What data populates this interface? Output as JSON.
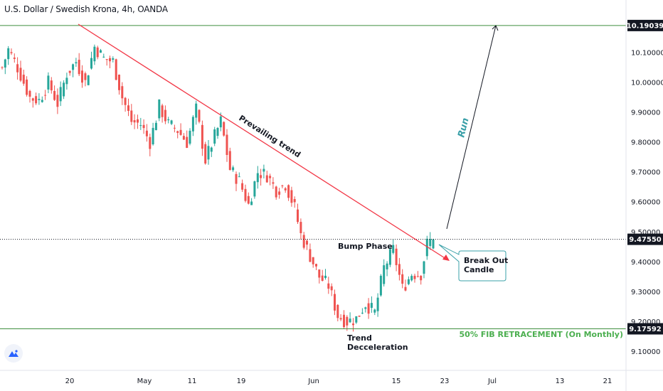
{
  "header": {
    "symbol_title": "U.S. Dollar / Swedish Krona, 4h, OANDA"
  },
  "colors": {
    "up": "#26a69a",
    "down": "#ef5350",
    "trendline": "#f23645",
    "fib_line": "#3f8f3f",
    "fib_text": "#4caf50",
    "run_text": "#3aa0a8",
    "run_arrow": "#131722",
    "price_tag": "#131722"
  },
  "chart_data": {
    "type": "candlestick",
    "x": [
      "20",
      "May",
      "11",
      "19",
      "Jun",
      "15",
      "23",
      "Jul",
      "13",
      "21"
    ],
    "y_ticks": [
      "10.10000",
      "10.00000",
      "9.90000",
      "9.80000",
      "9.70000",
      "9.60000",
      "9.50000",
      "9.40000",
      "9.30000",
      "9.20000",
      "9.10000"
    ],
    "ylim": [
      9.05,
      10.25
    ],
    "price_path": [
      [
        0,
        10.05
      ],
      [
        2,
        10.11
      ],
      [
        5,
        10.05
      ],
      [
        9,
        9.95
      ],
      [
        12,
        9.94
      ],
      [
        15,
        10.0
      ],
      [
        18,
        9.93
      ],
      [
        21,
        10.03
      ],
      [
        24,
        10.07
      ],
      [
        27,
        10.0
      ],
      [
        30,
        10.12
      ],
      [
        33,
        10.08
      ],
      [
        36,
        10.07
      ],
      [
        39,
        9.95
      ],
      [
        42,
        9.87
      ],
      [
        45,
        9.86
      ],
      [
        48,
        9.8
      ],
      [
        51,
        9.92
      ],
      [
        54,
        9.86
      ],
      [
        57,
        9.84
      ],
      [
        60,
        9.8
      ],
      [
        63,
        9.91
      ],
      [
        66,
        9.74
      ],
      [
        69,
        9.82
      ],
      [
        71,
        9.87
      ],
      [
        74,
        9.71
      ],
      [
        77,
        9.67
      ],
      [
        80,
        9.59
      ],
      [
        83,
        9.7
      ],
      [
        86,
        9.69
      ],
      [
        89,
        9.64
      ],
      [
        92,
        9.66
      ],
      [
        95,
        9.58
      ],
      [
        97,
        9.49
      ],
      [
        100,
        9.42
      ],
      [
        103,
        9.35
      ],
      [
        106,
        9.32
      ],
      [
        109,
        9.22
      ],
      [
        112,
        9.2
      ],
      [
        115,
        9.21
      ],
      [
        118,
        9.26
      ],
      [
        121,
        9.23
      ],
      [
        124,
        9.38
      ],
      [
        127,
        9.44
      ],
      [
        130,
        9.31
      ],
      [
        133,
        9.36
      ],
      [
        136,
        9.36
      ],
      [
        138,
        9.46
      ],
      [
        140,
        9.48
      ]
    ],
    "last_price": "9.47550",
    "annotations": {
      "resistance_level": "10.19039",
      "support_level": "9.17592",
      "fib_label": "50% FIB RETRACEMENT (On Monthly)",
      "trendline_label": "Prevailing trend",
      "run_label": "Run",
      "bump_label": "Bump Phase",
      "breakout_label_line1": "Break Out",
      "breakout_label_line2": "Candle",
      "decel_label_line1": "Trend",
      "decel_label_line2": "Decceleration"
    }
  }
}
